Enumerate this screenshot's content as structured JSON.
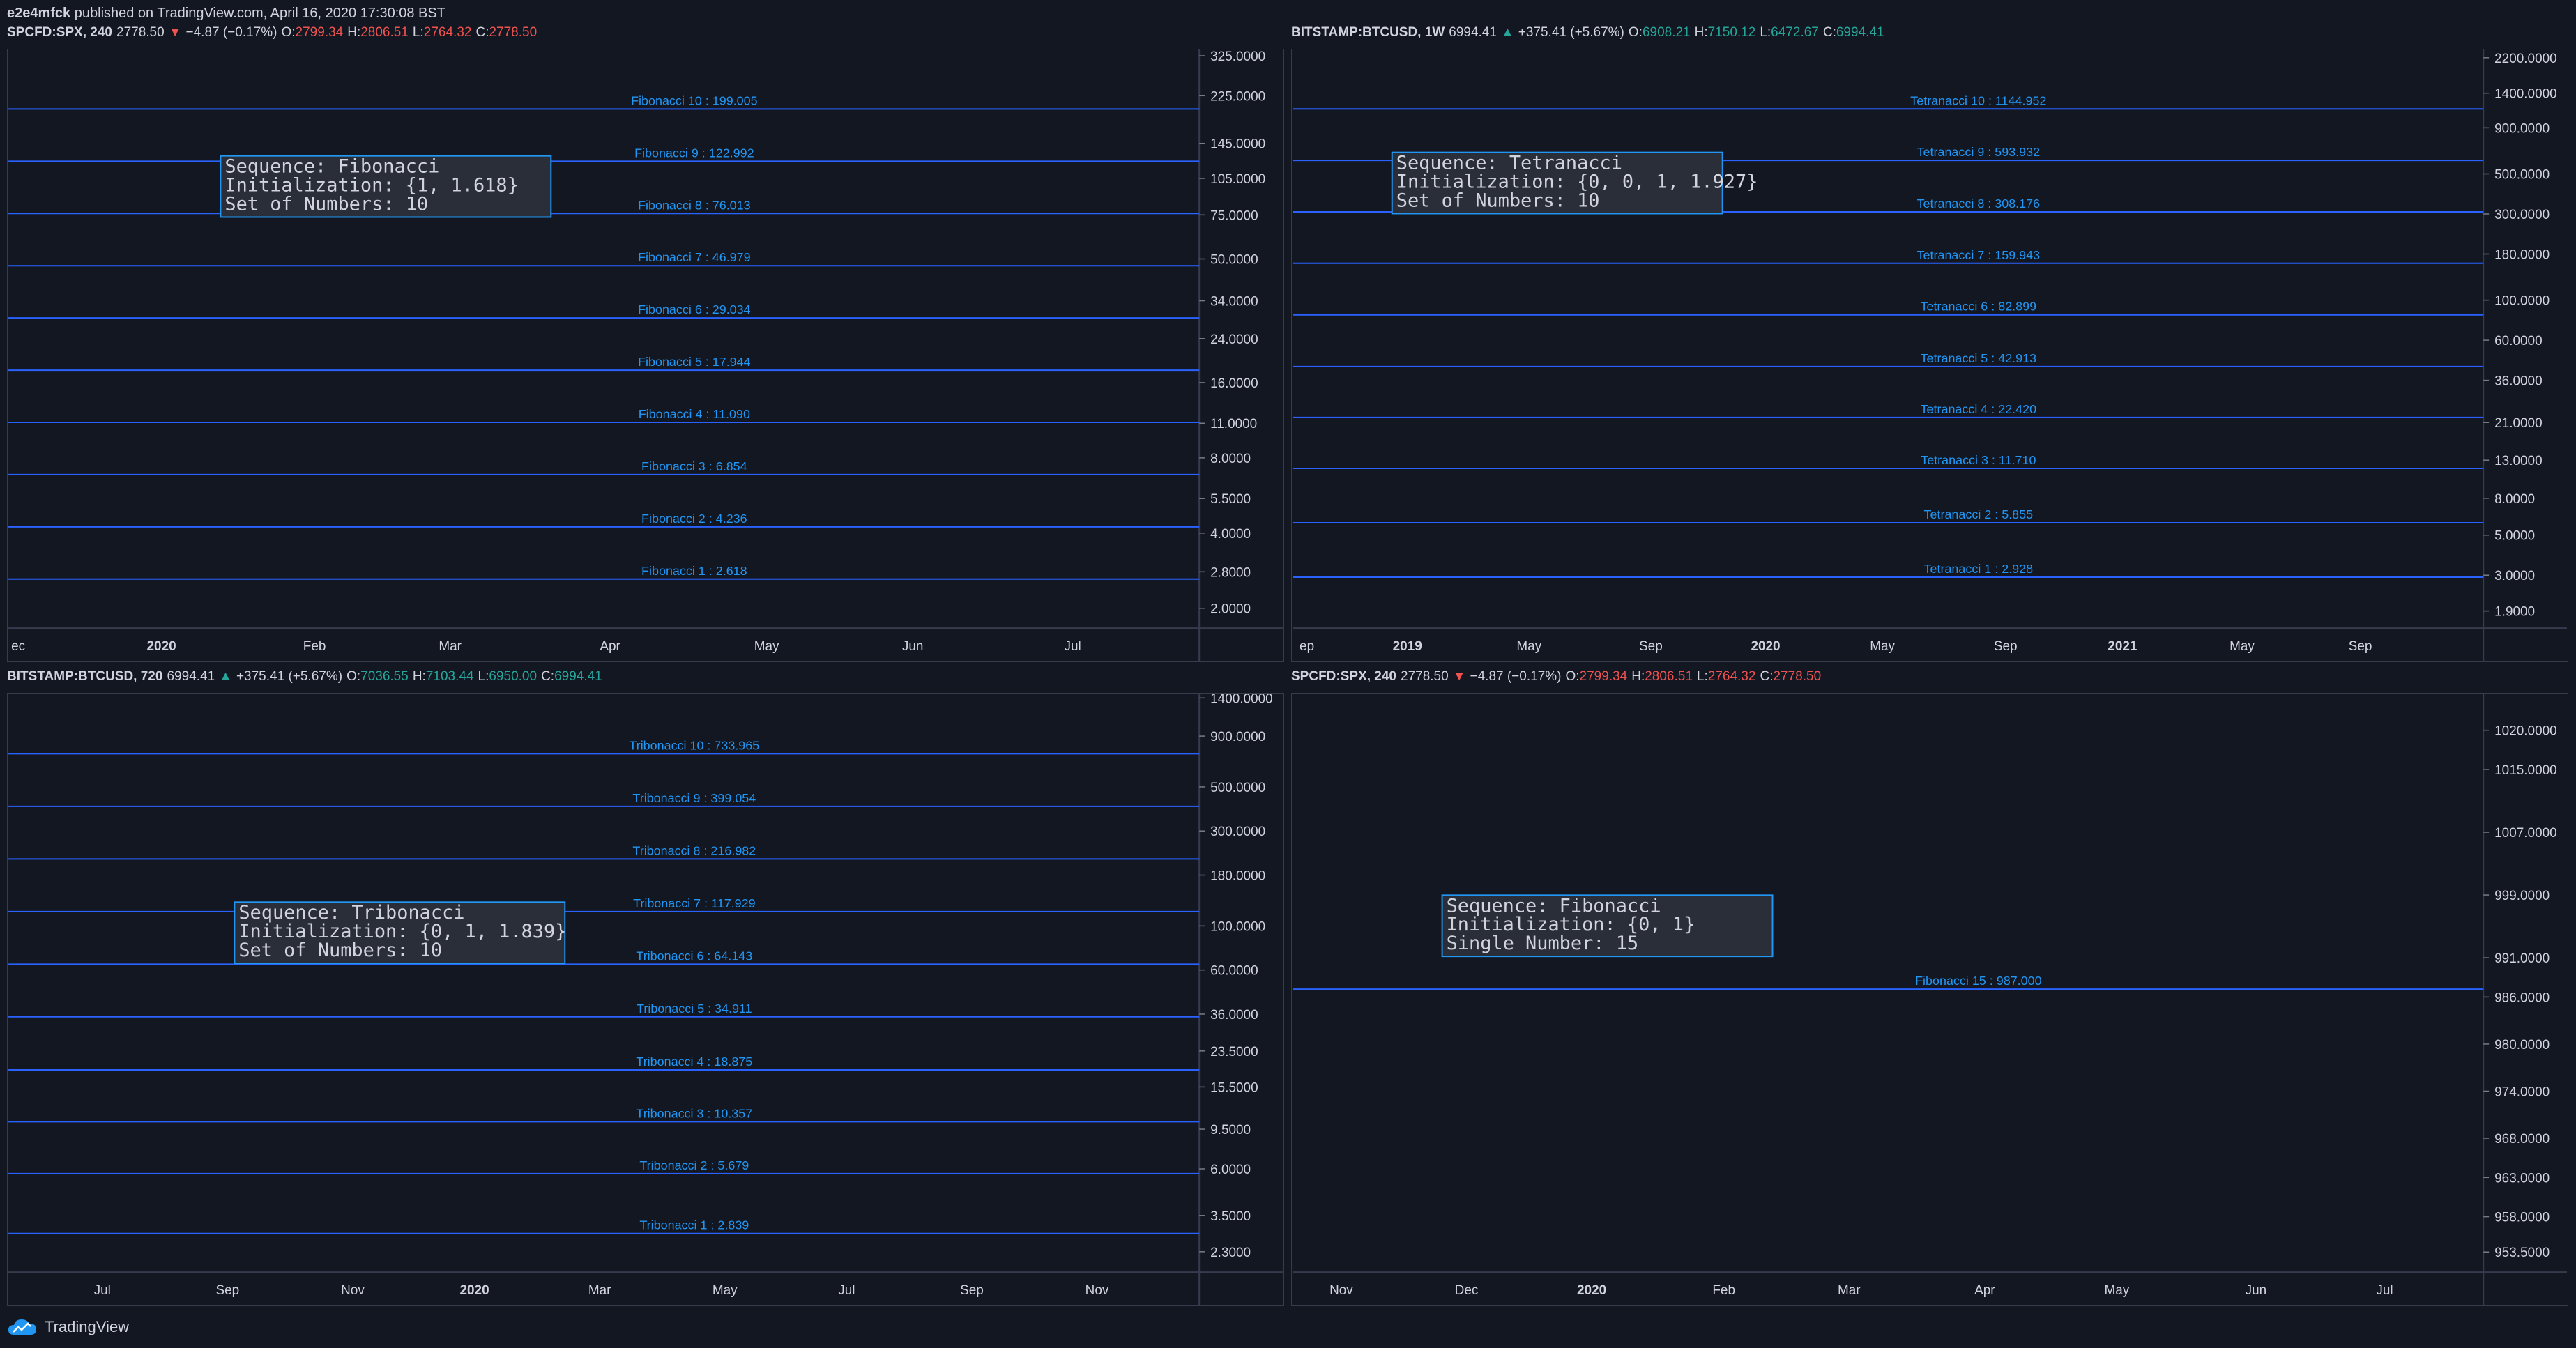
{
  "publish_line": {
    "author": "e2e4mfck",
    "text": "published on TradingView.com, April 16, 2020 17:30:08 BST"
  },
  "footer": {
    "brand": "TradingView",
    "logo_icon": "tradingview-cloud-icon"
  },
  "colors": {
    "background": "#131722",
    "line": "#2962ff",
    "label": "#2196f3",
    "border": "#363c4e",
    "text": "#d1d4dc",
    "up": "#26a69a",
    "down": "#ef5350"
  },
  "chart_data": [
    {
      "type": "line",
      "header": {
        "symbol": "SPCFD:SPX, 240",
        "last": "2778.50",
        "direction": "down",
        "change": "−4.87 (−0.17%)",
        "O": "2799.34",
        "H": "2806.51",
        "L": "2764.32",
        "C": "2778.50"
      },
      "y_scale": "log",
      "ylim": [
        1.8,
        340
      ],
      "y_ticks": [
        "325.0000",
        "225.0000",
        "145.0000",
        "105.0000",
        "75.0000",
        "50.0000",
        "34.0000",
        "24.0000",
        "16.0000",
        "11.0000",
        "8.0000",
        "5.5000",
        "4.0000",
        "2.8000",
        "2.0000"
      ],
      "x_ticks": [
        "ec",
        "2020",
        "Feb",
        "Mar",
        "Apr",
        "May",
        "Jun",
        "Jul"
      ],
      "x_bold": [
        "2020"
      ],
      "levels": [
        {
          "label": "Fibonacci 10 : 199.005",
          "value": 199.005
        },
        {
          "label": "Fibonacci 9 : 122.992",
          "value": 122.992
        },
        {
          "label": "Fibonacci 8 : 76.013",
          "value": 76.013
        },
        {
          "label": "Fibonacci 7 : 46.979",
          "value": 46.979
        },
        {
          "label": "Fibonacci 6 : 29.034",
          "value": 29.034
        },
        {
          "label": "Fibonacci 5 : 17.944",
          "value": 17.944
        },
        {
          "label": "Fibonacci 4 : 11.090",
          "value": 11.09
        },
        {
          "label": "Fibonacci 3 : 6.854",
          "value": 6.854
        },
        {
          "label": "Fibonacci 2 : 4.236",
          "value": 4.236
        },
        {
          "label": "Fibonacci 1 : 2.618",
          "value": 2.618
        }
      ],
      "info_box": [
        "Sequence: Fibonacci",
        "Initialization: {1, 1.618}",
        "Set of Numbers: 10"
      ]
    },
    {
      "type": "line",
      "header": {
        "symbol": "BITSTAMP:BTCUSD, 1W",
        "last": "6994.41",
        "direction": "up",
        "change": "+375.41 (+5.67%)",
        "O": "6908.21",
        "H": "7150.12",
        "L": "6472.67",
        "C": "6994.41"
      },
      "y_scale": "log",
      "ylim": [
        1.7,
        2400
      ],
      "y_ticks": [
        "2200.0000",
        "1400.0000",
        "900.0000",
        "500.0000",
        "300.0000",
        "180.0000",
        "100.0000",
        "60.0000",
        "36.0000",
        "21.0000",
        "13.0000",
        "8.0000",
        "5.0000",
        "3.0000",
        "1.9000"
      ],
      "x_ticks": [
        "ep",
        "2019",
        "May",
        "Sep",
        "2020",
        "May",
        "Sep",
        "2021",
        "May",
        "Sep"
      ],
      "x_bold": [
        "2019",
        "2020",
        "2021"
      ],
      "levels": [
        {
          "label": "Tetranacci 10 : 1144.952",
          "value": 1144.952
        },
        {
          "label": "Tetranacci 9 : 593.932",
          "value": 593.932
        },
        {
          "label": "Tetranacci 8 : 308.176",
          "value": 308.176
        },
        {
          "label": "Tetranacci 7 : 159.943",
          "value": 159.943
        },
        {
          "label": "Tetranacci 6 : 82.899",
          "value": 82.899
        },
        {
          "label": "Tetranacci 5 : 42.913",
          "value": 42.913
        },
        {
          "label": "Tetranacci 4 : 22.420",
          "value": 22.42
        },
        {
          "label": "Tetranacci 3 : 11.710",
          "value": 11.71
        },
        {
          "label": "Tetranacci 2 : 5.855",
          "value": 5.855
        },
        {
          "label": "Tetranacci 1 : 2.928",
          "value": 2.928
        }
      ],
      "info_box": [
        "Sequence: Tetranacci",
        "Initialization: {0, 0, 1, 1.927}",
        "Set of Numbers: 10"
      ]
    },
    {
      "type": "line",
      "header": {
        "symbol": "BITSTAMP:BTCUSD, 720",
        "last": "6994.41",
        "direction": "up",
        "change": "+375.41 (+5.67%)",
        "O": "7036.55",
        "H": "7103.44",
        "L": "6950.00",
        "C": "6994.41"
      },
      "y_scale": "log",
      "ylim": [
        2.0,
        1450
      ],
      "y_ticks": [
        "1400.0000",
        "900.0000",
        "500.0000",
        "300.0000",
        "180.0000",
        "100.0000",
        "60.0000",
        "36.0000",
        "23.5000",
        "15.5000",
        "9.5000",
        "6.0000",
        "3.5000",
        "2.3000"
      ],
      "x_ticks": [
        "Jul",
        "Sep",
        "Nov",
        "2020",
        "Mar",
        "May",
        "Jul",
        "Sep",
        "Nov"
      ],
      "x_bold": [
        "2020"
      ],
      "levels": [
        {
          "label": "Tribonacci 10 : 733.965",
          "value": 733.965
        },
        {
          "label": "Tribonacci 9 : 399.054",
          "value": 399.054
        },
        {
          "label": "Tribonacci 8 : 216.982",
          "value": 216.982
        },
        {
          "label": "Tribonacci 7 : 117.929",
          "value": 117.929
        },
        {
          "label": "Tribonacci 6 : 64.143",
          "value": 64.143
        },
        {
          "label": "Tribonacci 5 : 34.911",
          "value": 34.911
        },
        {
          "label": "Tribonacci 4 : 18.875",
          "value": 18.875
        },
        {
          "label": "Tribonacci 3 : 10.357",
          "value": 10.357
        },
        {
          "label": "Tribonacci 2 : 5.679",
          "value": 5.679
        },
        {
          "label": "Tribonacci 1 : 2.839",
          "value": 2.839
        }
      ],
      "info_box": [
        "Sequence: Tribonacci",
        "Initialization: {0, 1, 1.839}",
        "Set of Numbers: 10"
      ]
    },
    {
      "type": "line",
      "header": {
        "symbol": "SPCFD:SPX, 240",
        "last": "2778.50",
        "direction": "down",
        "change": "−4.87 (−0.17%)",
        "O": "2799.34",
        "H": "2806.51",
        "L": "2764.32",
        "C": "2778.50"
      },
      "y_scale": "linear",
      "ylim": [
        952,
        1024.5
      ],
      "y_ticks": [
        "1020.0000",
        "1015.0000",
        "1007.0000",
        "999.0000",
        "991.0000",
        "986.0000",
        "980.0000",
        "974.0000",
        "968.0000",
        "963.0000",
        "958.0000",
        "953.5000"
      ],
      "x_ticks": [
        "Nov",
        "Dec",
        "2020",
        "Feb",
        "Mar",
        "Apr",
        "May",
        "Jun",
        "Jul"
      ],
      "x_bold": [
        "2020"
      ],
      "levels": [
        {
          "label": "Fibonacci 15 : 987.000",
          "value": 987.0
        }
      ],
      "info_box": [
        "Sequence: Fibonacci",
        "Initialization: {0, 1}",
        "Single Number: 15"
      ]
    }
  ]
}
